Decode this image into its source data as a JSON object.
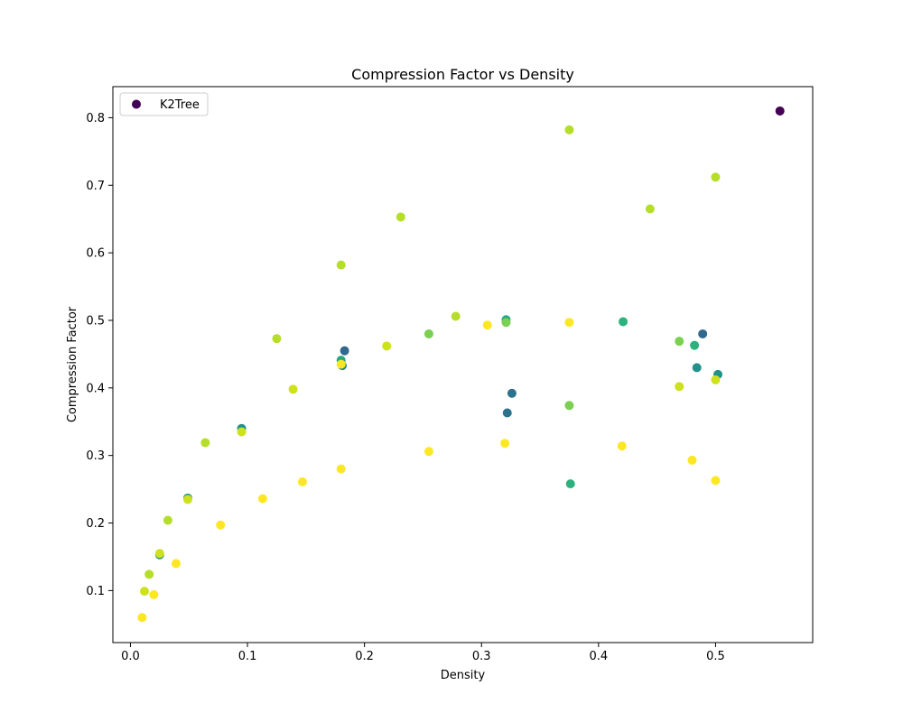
{
  "chart_data": {
    "type": "scatter",
    "title": "Compression Factor vs Density",
    "xlabel": "Density",
    "ylabel": "Compression Factor",
    "xlim": [
      -0.015,
      0.583
    ],
    "ylim": [
      0.023,
      0.846
    ],
    "xticks": [
      0,
      0.1,
      0.2,
      0.3,
      0.4,
      0.5
    ],
    "xtick_labels": [
      "0.0",
      "0.1",
      "0.2",
      "0.3",
      "0.4",
      "0.5"
    ],
    "yticks": [
      0.1,
      0.2,
      0.3,
      0.4,
      0.5,
      0.6,
      0.7,
      0.8
    ],
    "ytick_labels": [
      "0.1",
      "0.2",
      "0.3",
      "0.4",
      "0.5",
      "0.6",
      "0.7",
      "0.8"
    ],
    "grid": false,
    "legend": {
      "placement": "top-left",
      "entries": [
        {
          "label": "K2Tree",
          "color": "#440154"
        }
      ]
    },
    "colormap": "viridis",
    "series": [
      {
        "name": "K2Tree",
        "points": [
          {
            "x": 0.555,
            "y": 0.81,
            "color": "#440154"
          },
          {
            "x": 0.489,
            "y": 0.48,
            "color": "#31688e"
          },
          {
            "x": 0.183,
            "y": 0.455,
            "color": "#31688e"
          },
          {
            "x": 0.326,
            "y": 0.392,
            "color": "#2c728e"
          },
          {
            "x": 0.322,
            "y": 0.363,
            "color": "#2c728e"
          },
          {
            "x": 0.181,
            "y": 0.433,
            "color": "#26828e"
          },
          {
            "x": 0.484,
            "y": 0.43,
            "color": "#21918c"
          },
          {
            "x": 0.502,
            "y": 0.42,
            "color": "#21918c"
          },
          {
            "x": 0.095,
            "y": 0.34,
            "color": "#21918c"
          },
          {
            "x": 0.049,
            "y": 0.237,
            "color": "#21918c"
          },
          {
            "x": 0.025,
            "y": 0.153,
            "color": "#21918c"
          },
          {
            "x": 0.321,
            "y": 0.501,
            "color": "#22a884"
          },
          {
            "x": 0.18,
            "y": 0.441,
            "color": "#22a884"
          },
          {
            "x": 0.421,
            "y": 0.498,
            "color": "#2db27d"
          },
          {
            "x": 0.482,
            "y": 0.463,
            "color": "#2db27d"
          },
          {
            "x": 0.376,
            "y": 0.258,
            "color": "#2db27d"
          },
          {
            "x": 0.255,
            "y": 0.48,
            "color": "#7ad151"
          },
          {
            "x": 0.469,
            "y": 0.469,
            "color": "#7ad151"
          },
          {
            "x": 0.375,
            "y": 0.374,
            "color": "#7ad151"
          },
          {
            "x": 0.321,
            "y": 0.497,
            "color": "#7ad151"
          },
          {
            "x": 0.375,
            "y": 0.782,
            "color": "#b5de2b"
          },
          {
            "x": 0.5,
            "y": 0.712,
            "color": "#b5de2b"
          },
          {
            "x": 0.444,
            "y": 0.665,
            "color": "#b5de2b"
          },
          {
            "x": 0.231,
            "y": 0.653,
            "color": "#b5de2b"
          },
          {
            "x": 0.18,
            "y": 0.582,
            "color": "#b5de2b"
          },
          {
            "x": 0.278,
            "y": 0.506,
            "color": "#b5de2b"
          },
          {
            "x": 0.125,
            "y": 0.473,
            "color": "#b5de2b"
          },
          {
            "x": 0.064,
            "y": 0.319,
            "color": "#b5de2b"
          },
          {
            "x": 0.032,
            "y": 0.204,
            "color": "#b5de2b"
          },
          {
            "x": 0.016,
            "y": 0.124,
            "color": "#b5de2b"
          },
          {
            "x": 0.5,
            "y": 0.412,
            "color": "#cde11d"
          },
          {
            "x": 0.469,
            "y": 0.402,
            "color": "#cde11d"
          },
          {
            "x": 0.139,
            "y": 0.398,
            "color": "#cde11d"
          },
          {
            "x": 0.219,
            "y": 0.462,
            "color": "#cde11d"
          },
          {
            "x": 0.095,
            "y": 0.335,
            "color": "#cde11d"
          },
          {
            "x": 0.049,
            "y": 0.235,
            "color": "#cde11d"
          },
          {
            "x": 0.025,
            "y": 0.155,
            "color": "#cde11d"
          },
          {
            "x": 0.012,
            "y": 0.099,
            "color": "#cde11d"
          },
          {
            "x": 0.375,
            "y": 0.497,
            "color": "#fde725"
          },
          {
            "x": 0.305,
            "y": 0.493,
            "color": "#fde725"
          },
          {
            "x": 0.18,
            "y": 0.435,
            "color": "#fde725"
          },
          {
            "x": 0.32,
            "y": 0.318,
            "color": "#fde725"
          },
          {
            "x": 0.42,
            "y": 0.314,
            "color": "#fde725"
          },
          {
            "x": 0.255,
            "y": 0.306,
            "color": "#fde725"
          },
          {
            "x": 0.48,
            "y": 0.293,
            "color": "#fde725"
          },
          {
            "x": 0.18,
            "y": 0.28,
            "color": "#fde725"
          },
          {
            "x": 0.5,
            "y": 0.263,
            "color": "#fde725"
          },
          {
            "x": 0.147,
            "y": 0.261,
            "color": "#fde725"
          },
          {
            "x": 0.113,
            "y": 0.236,
            "color": "#fde725"
          },
          {
            "x": 0.077,
            "y": 0.197,
            "color": "#fde725"
          },
          {
            "x": 0.039,
            "y": 0.14,
            "color": "#fde725"
          },
          {
            "x": 0.02,
            "y": 0.094,
            "color": "#fde725"
          },
          {
            "x": 0.01,
            "y": 0.06,
            "color": "#fde725"
          }
        ]
      }
    ]
  }
}
